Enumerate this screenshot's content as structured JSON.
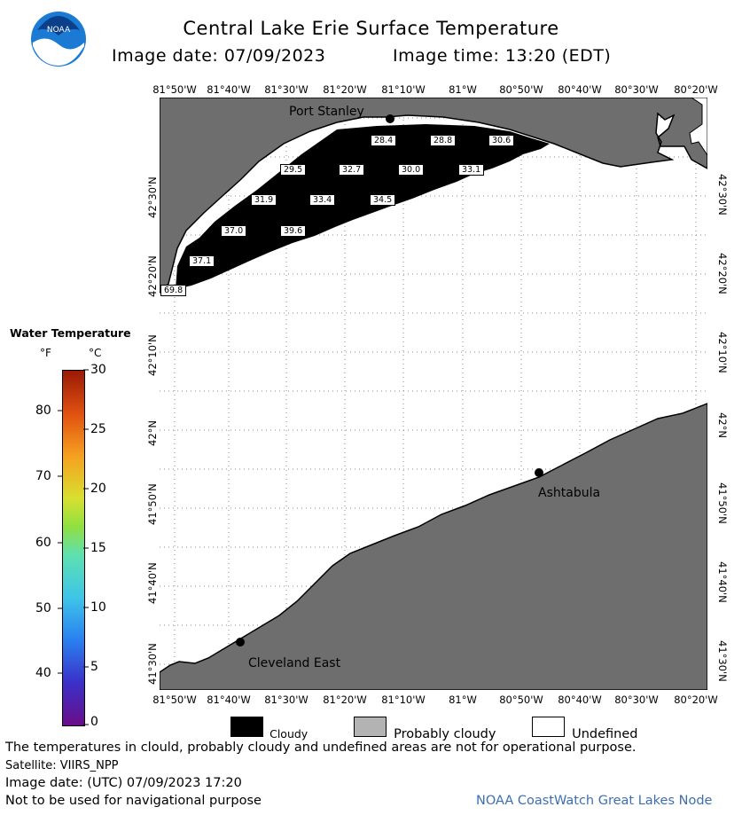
{
  "header": {
    "title": "Central Lake Erie Surface Temperature",
    "image_date_label": "Image date: 07/09/2023",
    "image_time_label": "Image time: 13:20 (EDT)",
    "logo_text": "NOAA"
  },
  "map": {
    "lon_labels": [
      "81°50'W",
      "81°40'W",
      "81°30'W",
      "81°20'W",
      "81°10'W",
      "81°W",
      "80°50'W",
      "80°40'W",
      "80°30'W",
      "80°20'W"
    ],
    "lat_labels": [
      "42°30'N",
      "42°20'N",
      "42°10'N",
      "42°N",
      "41°50'N",
      "41°40'N",
      "41°30'N"
    ],
    "cities": [
      {
        "name": "Port Stanley"
      },
      {
        "name": "Ashtabula"
      },
      {
        "name": "Cleveland East"
      }
    ],
    "temp_labels": [
      "28.4",
      "28.8",
      "30.6",
      "29.5",
      "32.7",
      "30.0",
      "33.1",
      "31.9",
      "33.4",
      "34.5",
      "37.0",
      "39.6",
      "37.1",
      "69.8"
    ],
    "colors": {
      "land": "#6e6e6e",
      "cloud": "#000000",
      "undefined": "#ffffff",
      "grid": "#888888"
    }
  },
  "legend": {
    "title": "Water Temperature",
    "unit_f": "°F",
    "unit_c": "°C",
    "f_ticks": [
      "80",
      "70",
      "60",
      "50",
      "40"
    ],
    "c_ticks": [
      "30",
      "25",
      "20",
      "15",
      "10",
      "5",
      "0"
    ]
  },
  "categories": [
    {
      "label": "Cloudy",
      "color": "#000000"
    },
    {
      "label": "Probably cloudy",
      "color": "#b3b3b3"
    },
    {
      "label": "Undefined",
      "color": "#ffffff"
    }
  ],
  "footer": {
    "disclaimer": "The temperatures in clould, probably cloudy and undefined areas are not for operational purpose.",
    "satellite": "Satellite: VIIRS_NPP",
    "utc_date": "Image date: (UTC) 07/09/2023  17:20",
    "navigation": "Not to be used for navigational purpose",
    "credit": "NOAA CoastWatch Great Lakes Node"
  }
}
